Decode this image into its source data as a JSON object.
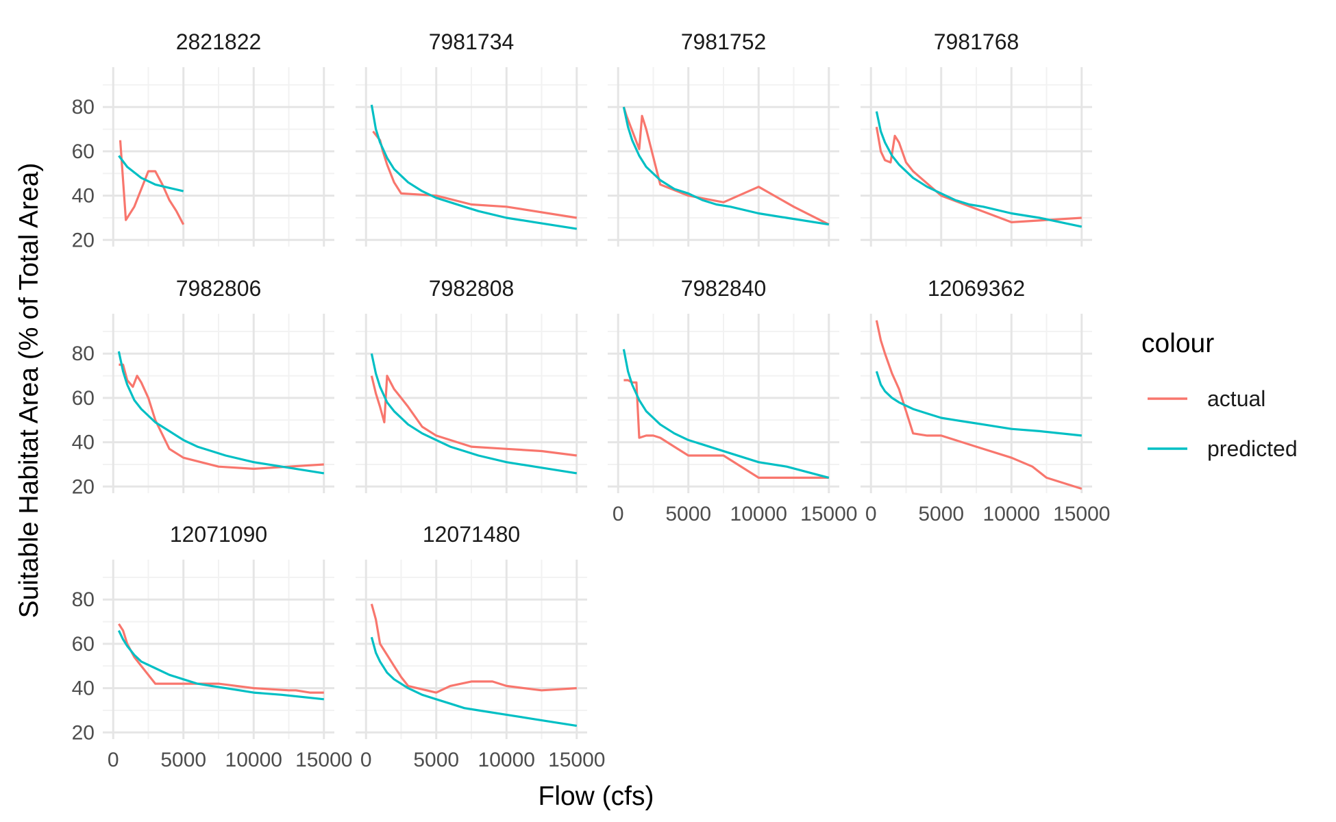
{
  "chart_data": {
    "type": "line",
    "xlabel": "Flow (cfs)",
    "ylabel": "Suitable Habitat Area (% of Total Area)",
    "xlim": [
      0,
      15000
    ],
    "ylim": [
      17,
      98
    ],
    "x_ticks": [
      0,
      5000,
      10000,
      15000
    ],
    "y_ticks": [
      20,
      40,
      60,
      80
    ],
    "grid": true,
    "legend": {
      "title": "colour",
      "position": "right",
      "entries": [
        {
          "name": "actual",
          "color": "#F8766D"
        },
        {
          "name": "predicted",
          "color": "#00BFC4"
        }
      ]
    },
    "panels": [
      {
        "title": "2821822",
        "series": [
          {
            "name": "actual",
            "x": [
              500,
              900,
              1500,
              2500,
              3000,
              3500,
              4000,
              4500,
              5000
            ],
            "y": [
              65,
              29,
              35,
              51,
              51,
              45,
              38,
              33,
              27
            ]
          },
          {
            "name": "predicted",
            "x": [
              400,
              1000,
              2000,
              3000,
              4000,
              5000
            ],
            "y": [
              58,
              53,
              48,
              45,
              43.5,
              42
            ]
          }
        ]
      },
      {
        "title": "7981734",
        "series": [
          {
            "name": "actual",
            "x": [
              500,
              1000,
              1200,
              1500,
              2000,
              2500,
              5000,
              7500,
              10000,
              15000
            ],
            "y": [
              69,
              65,
              60,
              54,
              46,
              41,
              40,
              36,
              35,
              30
            ]
          },
          {
            "name": "predicted",
            "x": [
              400,
              700,
              1000,
              1500,
              2000,
              3000,
              4000,
              5000,
              6000,
              7000,
              8000,
              10000,
              12000,
              15000
            ],
            "y": [
              81,
              70,
              64,
              57,
              52,
              46,
              42,
              39,
              37,
              35,
              33,
              30,
              28,
              25
            ]
          }
        ]
      },
      {
        "title": "7981752",
        "series": [
          {
            "name": "actual",
            "x": [
              400,
              600,
              1500,
              1700,
              2000,
              3000,
              5000,
              7500,
              10000,
              12500,
              15000
            ],
            "y": [
              80,
              76,
              61,
              76,
              70,
              45,
              40,
              37,
              44,
              35,
              27
            ]
          },
          {
            "name": "predicted",
            "x": [
              400,
              700,
              1000,
              1500,
              2000,
              3000,
              4000,
              5000,
              6000,
              7000,
              8000,
              10000,
              12000,
              15000
            ],
            "y": [
              80,
              71,
              65,
              58,
              53,
              47,
              43,
              41,
              38,
              36,
              35,
              32,
              30,
              27
            ]
          }
        ]
      },
      {
        "title": "7981768",
        "series": [
          {
            "name": "actual",
            "x": [
              400,
              700,
              1000,
              1400,
              1700,
              2000,
              2500,
              3000,
              5000,
              10000,
              12500,
              15000
            ],
            "y": [
              71,
              60,
              56,
              55,
              67,
              64,
              55,
              51,
              40,
              28,
              29,
              30
            ]
          },
          {
            "name": "predicted",
            "x": [
              400,
              700,
              1000,
              1500,
              2000,
              3000,
              4000,
              5000,
              6000,
              7000,
              8000,
              10000,
              12000,
              15000
            ],
            "y": [
              78,
              69,
              64,
              58,
              54,
              48,
              44,
              41,
              38,
              36,
              35,
              32,
              30,
              26
            ]
          }
        ]
      },
      {
        "title": "7982806",
        "series": [
          {
            "name": "actual",
            "x": [
              400,
              700,
              1000,
              1400,
              1700,
              2000,
              2500,
              3000,
              4000,
              5000,
              7500,
              10000,
              12500,
              15000
            ],
            "y": [
              75,
              75,
              68,
              65,
              70,
              67,
              60,
              50,
              37,
              33,
              29,
              28,
              29,
              30
            ]
          },
          {
            "name": "predicted",
            "x": [
              400,
              700,
              1000,
              1500,
              2000,
              3000,
              4000,
              5000,
              6000,
              7000,
              8000,
              10000,
              12000,
              15000
            ],
            "y": [
              81,
              72,
              66,
              59,
              55,
              49,
              45,
              41,
              38,
              36,
              34,
              31,
              29,
              26
            ]
          }
        ]
      },
      {
        "title": "7982808",
        "series": [
          {
            "name": "actual",
            "x": [
              400,
              700,
              1000,
              1300,
              1500,
              2000,
              2500,
              3000,
              4000,
              5000,
              7500,
              10000,
              12500,
              15000
            ],
            "y": [
              70,
              62,
              56,
              49,
              70,
              64,
              60,
              56,
              47,
              43,
              38,
              37,
              36,
              34
            ]
          },
          {
            "name": "predicted",
            "x": [
              400,
              700,
              1000,
              1500,
              2000,
              3000,
              4000,
              5000,
              6000,
              7000,
              8000,
              10000,
              12000,
              15000
            ],
            "y": [
              80,
              71,
              65,
              58,
              54,
              48,
              44,
              41,
              38,
              36,
              34,
              31,
              29,
              26
            ]
          }
        ]
      },
      {
        "title": "7982840",
        "series": [
          {
            "name": "actual",
            "x": [
              400,
              700,
              1000,
              1300,
              1500,
              2000,
              2500,
              3000,
              4000,
              5000,
              7500,
              10000,
              12500,
              15000
            ],
            "y": [
              68,
              68,
              67,
              67,
              42,
              43,
              43,
              42,
              38,
              34,
              34,
              24,
              24,
              24
            ]
          },
          {
            "name": "predicted",
            "x": [
              400,
              700,
              1000,
              1500,
              2000,
              3000,
              4000,
              5000,
              6000,
              7000,
              8000,
              10000,
              12000,
              15000
            ],
            "y": [
              82,
              72,
              66,
              59,
              54,
              48,
              44,
              41,
              39,
              37,
              35,
              31,
              29,
              24
            ]
          }
        ]
      },
      {
        "title": "12069362",
        "series": [
          {
            "name": "actual",
            "x": [
              400,
              700,
              1000,
              1500,
              2000,
              2500,
              3000,
              4000,
              5000,
              7500,
              10000,
              11500,
              12500,
              15000
            ],
            "y": [
              95,
              86,
              80,
              71,
              64,
              54,
              44,
              43,
              43,
              38,
              33,
              29,
              24,
              19
            ]
          },
          {
            "name": "predicted",
            "x": [
              400,
              700,
              1000,
              1500,
              2000,
              3000,
              4000,
              5000,
              6000,
              7000,
              8000,
              10000,
              12000,
              15000
            ],
            "y": [
              72,
              66,
              63,
              60,
              58,
              55,
              53,
              51,
              50,
              49,
              48,
              46,
              45,
              43
            ]
          }
        ]
      },
      {
        "title": "12071090",
        "series": [
          {
            "name": "actual",
            "x": [
              400,
              700,
              1000,
              1500,
              2000,
              2500,
              3000,
              5000,
              7500,
              10000,
              12500,
              13000,
              14000,
              15000
            ],
            "y": [
              69,
              66,
              60,
              54,
              50,
              46,
              42,
              42,
              42,
              40,
              39,
              39,
              38,
              38
            ]
          },
          {
            "name": "predicted",
            "x": [
              400,
              700,
              1000,
              1500,
              2000,
              3000,
              4000,
              5000,
              6000,
              7000,
              8000,
              10000,
              12000,
              15000
            ],
            "y": [
              66,
              62,
              59,
              55,
              52,
              49,
              46,
              44,
              42,
              41,
              40,
              38,
              37,
              35
            ]
          }
        ]
      },
      {
        "title": "12071480",
        "series": [
          {
            "name": "actual",
            "x": [
              400,
              700,
              1000,
              1500,
              2000,
              2500,
              3000,
              5000,
              6000,
              7500,
              9000,
              10000,
              12500,
              15000
            ],
            "y": [
              78,
              71,
              60,
              55,
              50,
              45,
              41,
              38,
              41,
              43,
              43,
              41,
              39,
              40
            ]
          },
          {
            "name": "predicted",
            "x": [
              400,
              700,
              1000,
              1500,
              2000,
              3000,
              4000,
              5000,
              6000,
              7000,
              8000,
              10000,
              12000,
              15000
            ],
            "y": [
              63,
              56,
              52,
              47,
              44,
              40,
              37,
              35,
              33,
              31,
              30,
              28,
              26,
              23
            ]
          }
        ]
      }
    ]
  }
}
